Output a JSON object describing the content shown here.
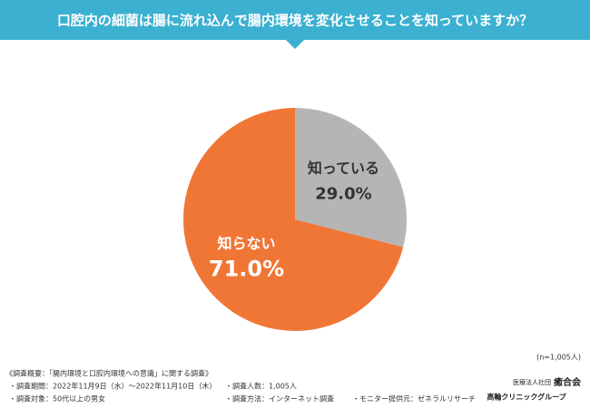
{
  "chart_data": {
    "type": "pie",
    "title": "口腔内の細菌は腸に流れ込んで腸内環境を変化させることを知っていますか？",
    "categories": [
      "知っている",
      "知らない"
    ],
    "values": [
      29.0,
      71.0
    ],
    "value_labels": [
      "29.0%",
      "71.0%"
    ],
    "colors": [
      "#b5b5b5",
      "#f07636"
    ],
    "label_colors": [
      "#333333",
      "#ffffff"
    ],
    "sample_size": "(n=1,005人)"
  },
  "survey": {
    "heading": "《調査概要：「腸内環境と口腔内環境への意識」に関する調査》",
    "items": [
      "・調査期間：2022年11月9日（水）～2022年11月10日（木）",
      "・調査人数：1,005人",
      "・調査対象：50代以上の男女",
      "・調査方法：インターネット調査",
      "・モニター提供元：ゼネラルリサーチ"
    ]
  },
  "logo": {
    "org": "医療法人社団",
    "name": "癒合会",
    "group": "高輪クリニックグループ"
  }
}
